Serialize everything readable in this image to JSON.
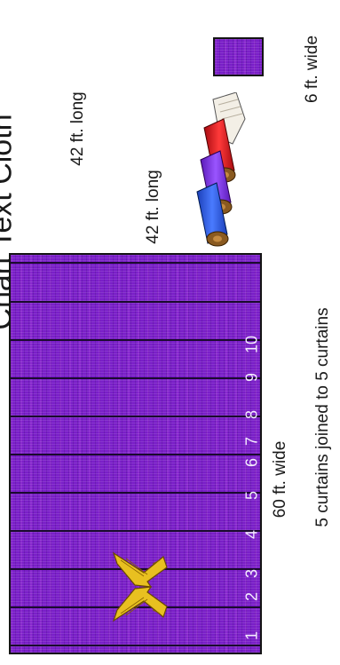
{
  "title": "Chart Text Cloth",
  "large_panel": {
    "width_label": "60 ft. wide",
    "length_label": "42 ft. long",
    "join_label": "5 curtains joined to 5 curtains",
    "curtain_numbers": [
      "1",
      "2",
      "3",
      "4",
      "5",
      "6",
      "7",
      "8",
      "9",
      "10"
    ]
  },
  "single_curtain": {
    "length_label": "42 ft. long",
    "width_label": "6 ft. wide"
  },
  "icons": [
    "cherubim-icon",
    "fabric-rolls-icon"
  ],
  "colors": {
    "fabric": "#7a1fc8",
    "roll_blue": "#2f5fe0",
    "roll_purple": "#7a2fe0",
    "roll_red": "#d8141a",
    "roll_linen": "#f3efe6",
    "cherubim_gold": "#e8c020"
  }
}
